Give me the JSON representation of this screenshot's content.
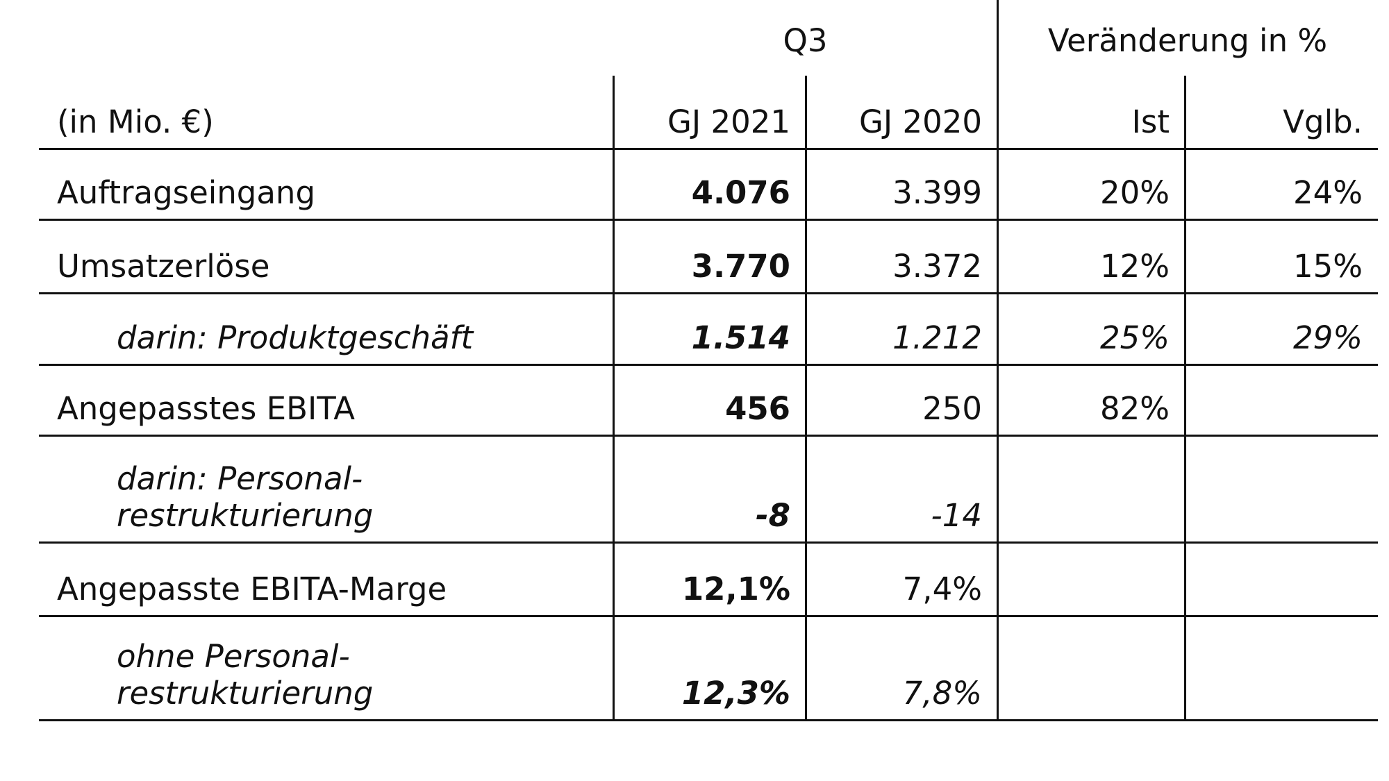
{
  "table": {
    "groups": [
      {
        "label": "Q3"
      },
      {
        "label": "Veränderung in %"
      }
    ],
    "unit_label": "(in Mio. €)",
    "columns": [
      "GJ 2021",
      "GJ 2020",
      "Ist",
      "Vglb."
    ],
    "rows": [
      {
        "label": "Auftragseingang",
        "italic": false,
        "cells": [
          "4.076",
          "3.399",
          "20%",
          "24%"
        ]
      },
      {
        "label": "Umsatzerlöse",
        "italic": false,
        "cells": [
          "3.770",
          "3.372",
          "12%",
          "15%"
        ]
      },
      {
        "label": "darin: Produktgeschäft",
        "italic": true,
        "cells": [
          "1.514",
          "1.212",
          "25%",
          "29%"
        ]
      },
      {
        "label": "Angepasstes EBITA",
        "italic": false,
        "cells": [
          "456",
          "250",
          "82%",
          null
        ]
      },
      {
        "label": "darin: Personal-\nrestrukturierung",
        "italic": true,
        "cells": [
          "-8",
          "-14",
          null,
          null
        ]
      },
      {
        "label": "Angepasste EBITA-Marge",
        "italic": false,
        "cells": [
          "12,1%",
          "7,4%",
          null,
          null
        ]
      },
      {
        "label": "ohne Personal-\nrestrukturierung",
        "italic": true,
        "cells": [
          "12,3%",
          "7,8%",
          null,
          null
        ]
      }
    ]
  }
}
